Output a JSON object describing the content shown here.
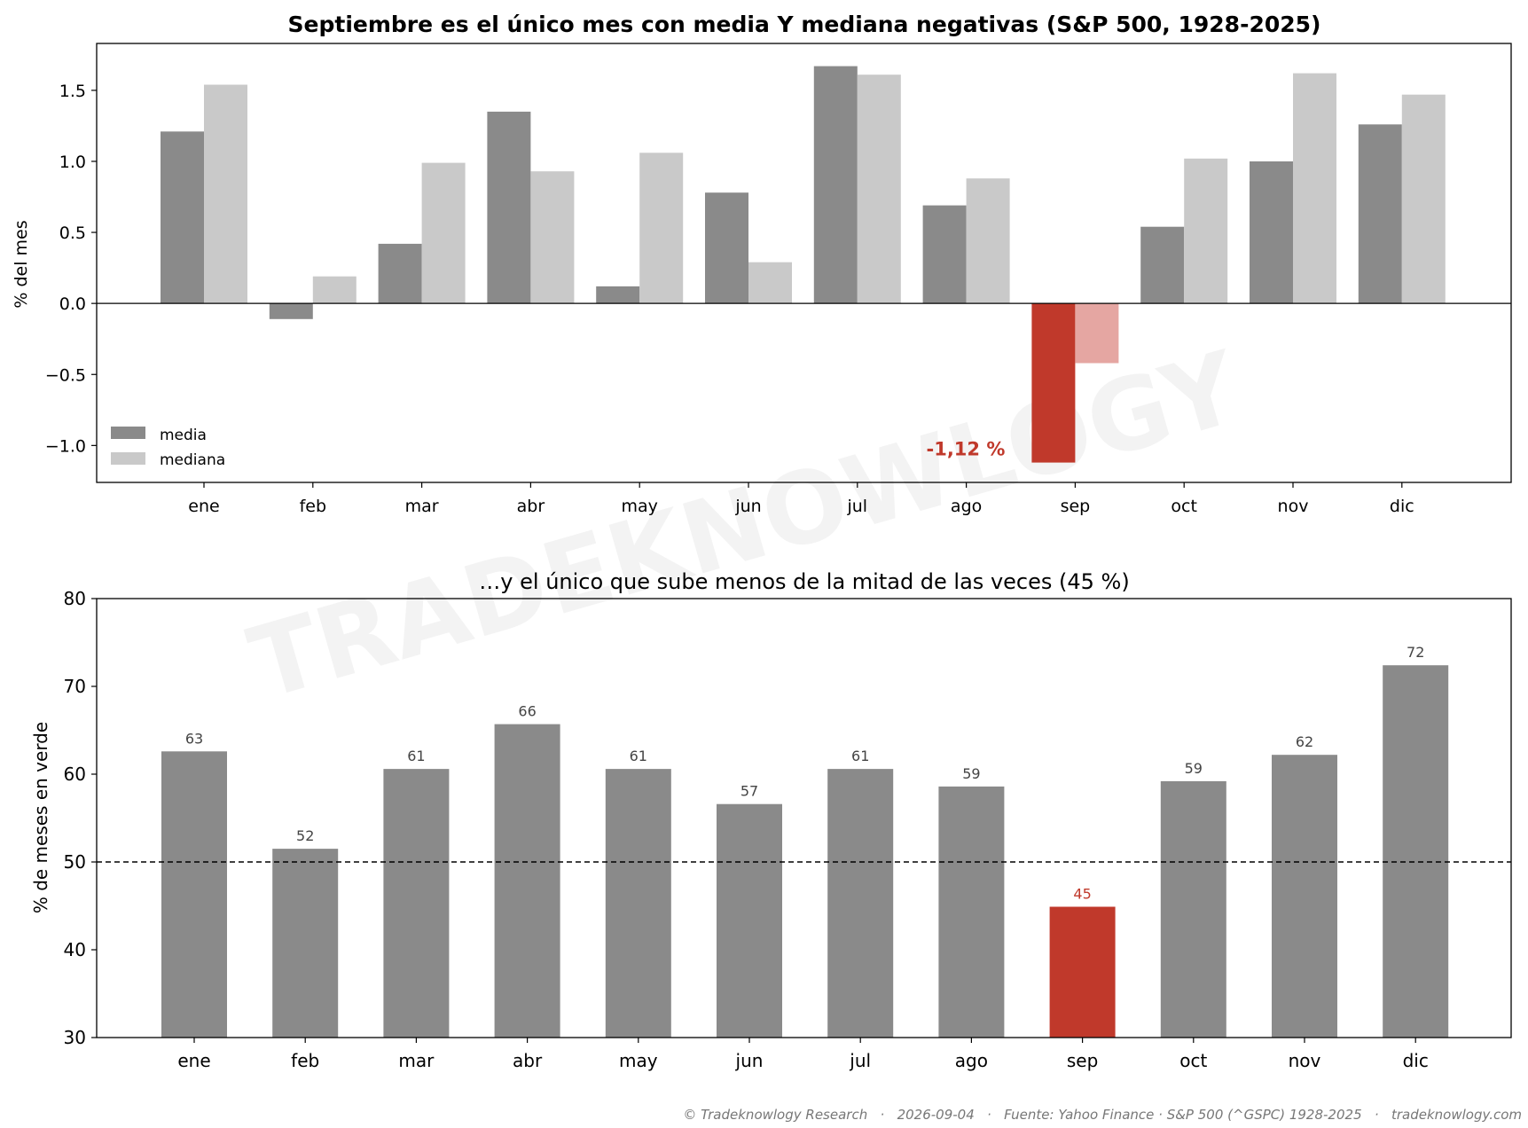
{
  "colors": {
    "media": "#8a8a8a",
    "mediana": "#c9c9c9",
    "highlight": "#c0392b",
    "highlight_light": "#e5a6a2",
    "axis": "#000000",
    "label": "#444444",
    "footer": "#777777",
    "watermark": "#ececec"
  },
  "watermark": "TRADEKNOWLOGY",
  "footer": "© Tradeknowlogy Research   ·   2026-09-04   ·   Fuente: Yahoo Finance · S&P 500 (^GSPC) 1928-2025   ·   tradeknowlogy.com",
  "chart_data": [
    {
      "type": "bar",
      "title": "Septiembre es el único mes con media Y mediana negativas (S&P 500, 1928-2025)",
      "ylabel": "% del mes",
      "xlabel": "",
      "categories": [
        "ene",
        "feb",
        "mar",
        "abr",
        "may",
        "jun",
        "jul",
        "ago",
        "sep",
        "oct",
        "nov",
        "dic"
      ],
      "series": [
        {
          "name": "media",
          "values": [
            1.21,
            -0.11,
            0.42,
            1.35,
            0.12,
            0.78,
            1.67,
            0.69,
            -1.12,
            0.54,
            1.0,
            1.26
          ]
        },
        {
          "name": "mediana",
          "values": [
            1.54,
            0.19,
            0.99,
            0.93,
            1.06,
            0.29,
            1.61,
            0.88,
            -0.42,
            1.02,
            1.62,
            1.47
          ]
        }
      ],
      "ylim": [
        -1.26,
        1.83
      ],
      "yticks": [
        -1.0,
        -0.5,
        0.0,
        0.5,
        1.0,
        1.5
      ],
      "ytick_labels": [
        "−1.0",
        "−0.5",
        "0.0",
        "0.5",
        "1.0",
        "1.5"
      ],
      "zero_line": 0,
      "highlight_category": "sep",
      "annotation": {
        "text": "-1,12 %",
        "category": "sep",
        "value": -1.12
      },
      "legend": "lower-left",
      "grid": false
    },
    {
      "type": "bar",
      "title": "…y el único que sube menos de la mitad de las veces (45 %)",
      "ylabel": "% de meses en verde",
      "xlabel": "",
      "categories": [
        "ene",
        "feb",
        "mar",
        "abr",
        "may",
        "jun",
        "jul",
        "ago",
        "sep",
        "oct",
        "nov",
        "dic"
      ],
      "values": [
        62.6,
        51.5,
        60.6,
        65.7,
        60.6,
        56.6,
        60.6,
        58.6,
        44.9,
        59.2,
        62.2,
        72.4
      ],
      "data_labels": [
        "63",
        "52",
        "61",
        "66",
        "61",
        "57",
        "61",
        "59",
        "45",
        "59",
        "62",
        "72"
      ],
      "ylim": [
        30,
        80
      ],
      "yticks": [
        30,
        40,
        50,
        60,
        70,
        80
      ],
      "reference_line": 50,
      "highlight_category": "sep",
      "grid": false
    }
  ]
}
